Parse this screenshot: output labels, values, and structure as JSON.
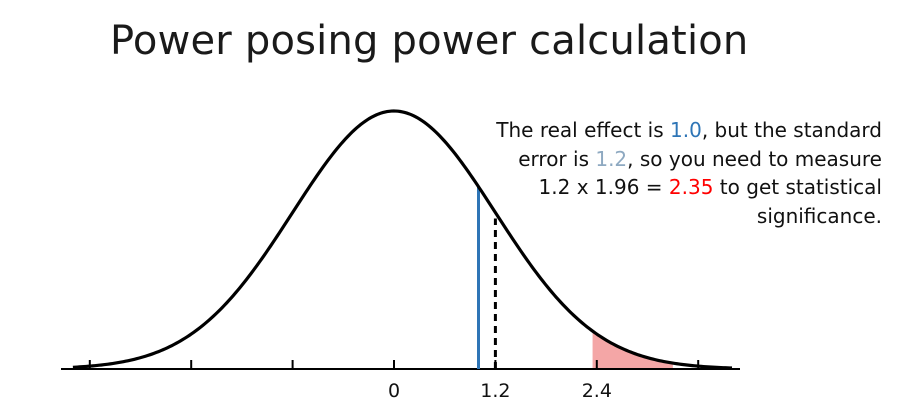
{
  "slide": {
    "title": "Power posing power calculation"
  },
  "annotation": {
    "line1_pre": "The real effect is ",
    "line1_val": "1.0",
    "line1_post": ", but the standard",
    "line2_pre": "error is ",
    "line2_val": "1.2",
    "line2_post": ", so you need to measure",
    "line3_pre": "1.2 x 1.96 = ",
    "line3_val": "2.35",
    "line3_post": " to get statistical",
    "line4": "significance."
  },
  "colors": {
    "real_effect": "#2e75b6",
    "standard_error": "#8ea9c1",
    "threshold": "#ff0000",
    "shaded_region": "#f4a6a6",
    "curve": "#000000"
  },
  "chart_data": {
    "type": "area",
    "distribution": "normal",
    "mean": 0,
    "sd": 1.2,
    "x_tick_labels": [
      {
        "x": 0,
        "label": "0"
      },
      {
        "x": 1.2,
        "label": "1.2"
      },
      {
        "x": 2.4,
        "label": "2.4"
      }
    ],
    "unlabeled_ticks": [
      -3.6,
      -2.4,
      -1.2,
      3.6
    ],
    "real_effect_line": 1.0,
    "standard_error_line": 1.2,
    "significance_threshold": 2.35,
    "shaded_from": 2.35,
    "xlim": [
      -3.8,
      4.0
    ]
  }
}
